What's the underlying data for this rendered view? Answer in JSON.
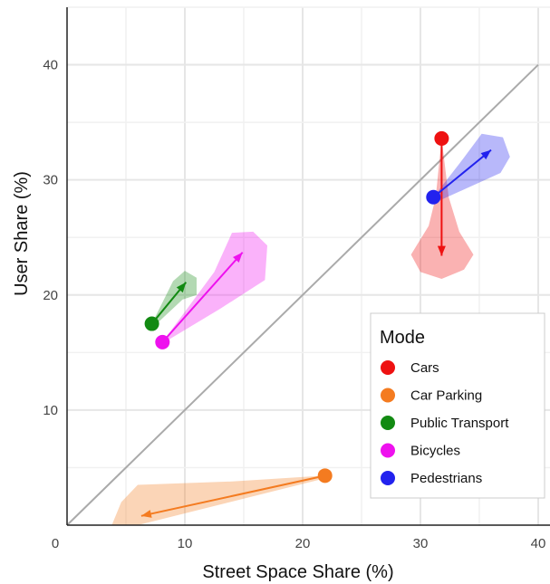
{
  "chart_data": {
    "type": "scatter",
    "title": "",
    "xlabel": "Street Space Share (%)",
    "ylabel": "User Share (%)",
    "xlim": [
      0,
      41
    ],
    "ylim": [
      0,
      45
    ],
    "x_ticks": [
      0,
      10,
      20,
      30,
      40
    ],
    "y_ticks": [
      10,
      20,
      30,
      40
    ],
    "x_tick_labels": [
      "0",
      "10",
      "20",
      "30",
      "40"
    ],
    "y_tick_labels": [
      "10",
      "20",
      "30",
      "40"
    ],
    "grid": true,
    "reference_line": {
      "from": [
        0,
        0
      ],
      "to": [
        40,
        40
      ],
      "color": "#aaaaaa"
    },
    "legend": {
      "title": "Mode",
      "position": "bottom-right"
    },
    "series": [
      {
        "name": "Cars",
        "color": "#ee1111",
        "point": [
          31.8,
          33.6
        ],
        "arrow_to": [
          31.8,
          23.4
        ],
        "band": [
          [
            31.8,
            33.6
          ],
          [
            32.4,
            28.5
          ],
          [
            33.3,
            25.5
          ],
          [
            34.5,
            23.5
          ],
          [
            33.7,
            22.2
          ],
          [
            31.8,
            21.4
          ],
          [
            30.0,
            22.0
          ],
          [
            29.2,
            23.5
          ],
          [
            30.7,
            26.0
          ],
          [
            31.3,
            28.5
          ]
        ]
      },
      {
        "name": "Car Parking",
        "color": "#f47b20",
        "point": [
          21.9,
          4.3
        ],
        "arrow_to": [
          6.3,
          0.8
        ],
        "band": [
          [
            21.9,
            4.3
          ],
          [
            14.0,
            3.8
          ],
          [
            6.0,
            3.5
          ],
          [
            4.6,
            2.0
          ],
          [
            3.8,
            0.0
          ],
          [
            6.0,
            0.0
          ],
          [
            21.6,
            4.0
          ]
        ]
      },
      {
        "name": "Public Transport",
        "color": "#128a12",
        "point": [
          7.2,
          17.5
        ],
        "arrow_to": [
          10.1,
          21.1
        ],
        "band": [
          [
            7.2,
            17.5
          ],
          [
            9.0,
            21.2
          ],
          [
            10.0,
            22.1
          ],
          [
            11.0,
            21.5
          ],
          [
            11.0,
            20.0
          ],
          [
            9.8,
            19.6
          ],
          [
            7.6,
            17.5
          ]
        ]
      },
      {
        "name": "Bicycles",
        "color": "#ee11ee",
        "point": [
          8.1,
          15.9
        ],
        "arrow_to": [
          14.9,
          23.7
        ],
        "band": [
          [
            8.1,
            15.9
          ],
          [
            12.5,
            22.0
          ],
          [
            14.0,
            25.4
          ],
          [
            15.8,
            25.5
          ],
          [
            17.0,
            24.3
          ],
          [
            16.8,
            21.3
          ],
          [
            13.0,
            18.8
          ],
          [
            8.6,
            16.1
          ]
        ]
      },
      {
        "name": "Pedestrians",
        "color": "#2222ee",
        "point": [
          31.1,
          28.5
        ],
        "arrow_to": [
          36.0,
          32.6
        ],
        "band": [
          [
            31.1,
            28.5
          ],
          [
            33.6,
            31.8
          ],
          [
            35.2,
            34.0
          ],
          [
            37.0,
            33.7
          ],
          [
            37.6,
            32.0
          ],
          [
            36.8,
            30.6
          ],
          [
            31.4,
            28.1
          ]
        ]
      }
    ]
  }
}
